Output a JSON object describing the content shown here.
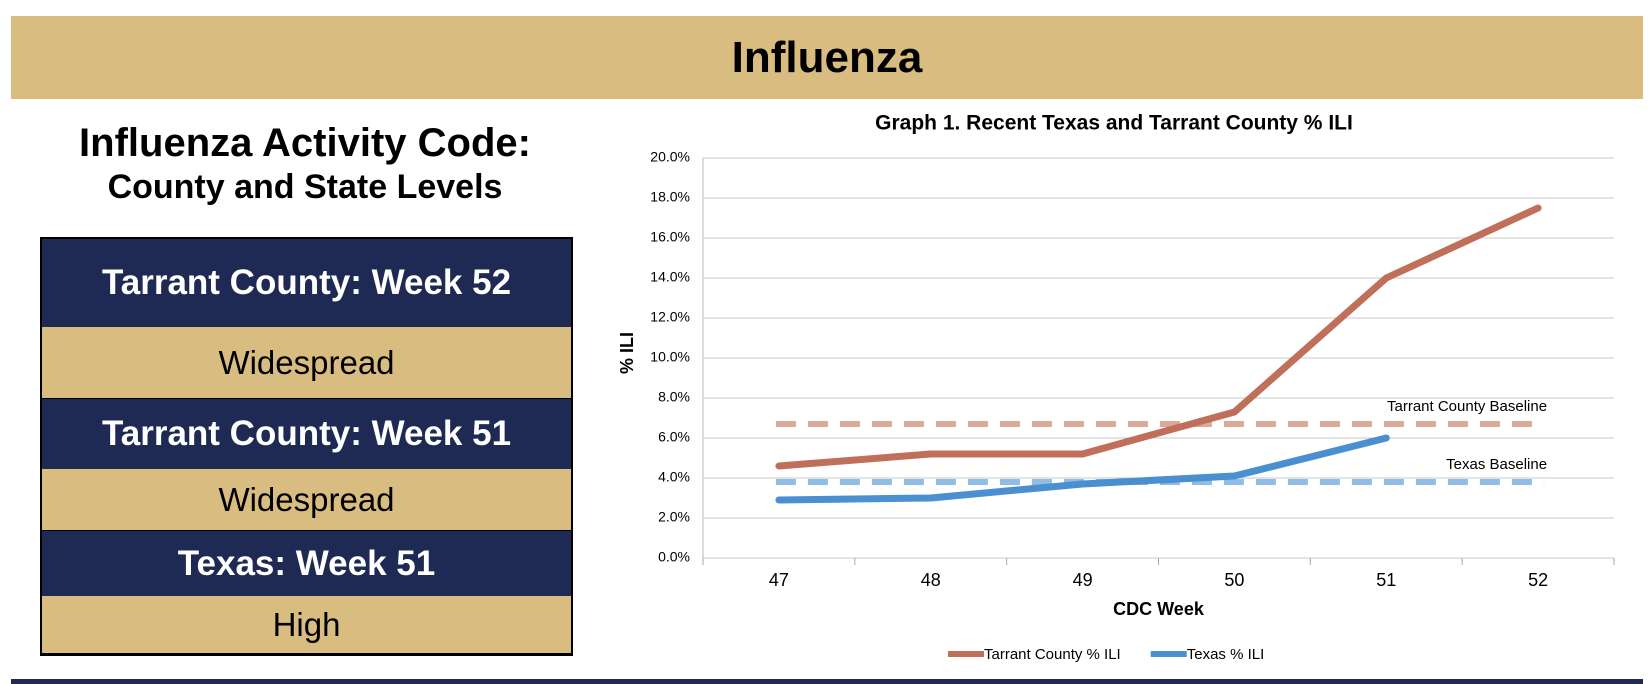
{
  "header": {
    "title": "Influenza"
  },
  "activity": {
    "title": "Influenza Activity Code:",
    "subtitle": "County and State Levels",
    "rows": [
      {
        "heading": "Tarrant County: Week 52",
        "level": "Widespread"
      },
      {
        "heading": "Tarrant County: Week 51",
        "level": "Widespread"
      },
      {
        "heading": "Texas: Week 51",
        "level": "High"
      }
    ]
  },
  "chart_data": {
    "type": "line",
    "title": "Graph 1. Recent Texas and Tarrant County % ILI",
    "x_label": "CDC Week",
    "y_label": "% ILI",
    "categories": [
      "47",
      "48",
      "49",
      "50",
      "51",
      "52"
    ],
    "series": [
      {
        "name": "Tarrant County % ILI",
        "color": "#c0705a",
        "values": [
          4.6,
          5.2,
          5.2,
          7.3,
          14.0,
          17.5
        ]
      },
      {
        "name": "Texas % ILI",
        "color": "#4a8fd0",
        "values": [
          2.9,
          3.0,
          3.7,
          4.1,
          6.0,
          null
        ]
      }
    ],
    "baselines": [
      {
        "label": "Tarrant County Baseline",
        "value": 6.7,
        "color": "#dba89a"
      },
      {
        "label": "Texas Baseline",
        "value": 3.8,
        "color": "#8fbde3"
      }
    ],
    "ylim": [
      0,
      20
    ],
    "yticks": [
      {
        "value": 0,
        "label": "0.0%"
      },
      {
        "value": 2,
        "label": "2.0%"
      },
      {
        "value": 4,
        "label": "4.0%"
      },
      {
        "value": 6,
        "label": "6.0%"
      },
      {
        "value": 8,
        "label": "8.0%"
      },
      {
        "value": 10,
        "label": "10.0%"
      },
      {
        "value": 12,
        "label": "12.0%"
      },
      {
        "value": 14,
        "label": "14.0%"
      },
      {
        "value": 16,
        "label": "16.0%"
      },
      {
        "value": 18,
        "label": "18.0%"
      },
      {
        "value": 20,
        "label": "20.0%"
      }
    ],
    "grid": true,
    "legend": "bottom"
  }
}
